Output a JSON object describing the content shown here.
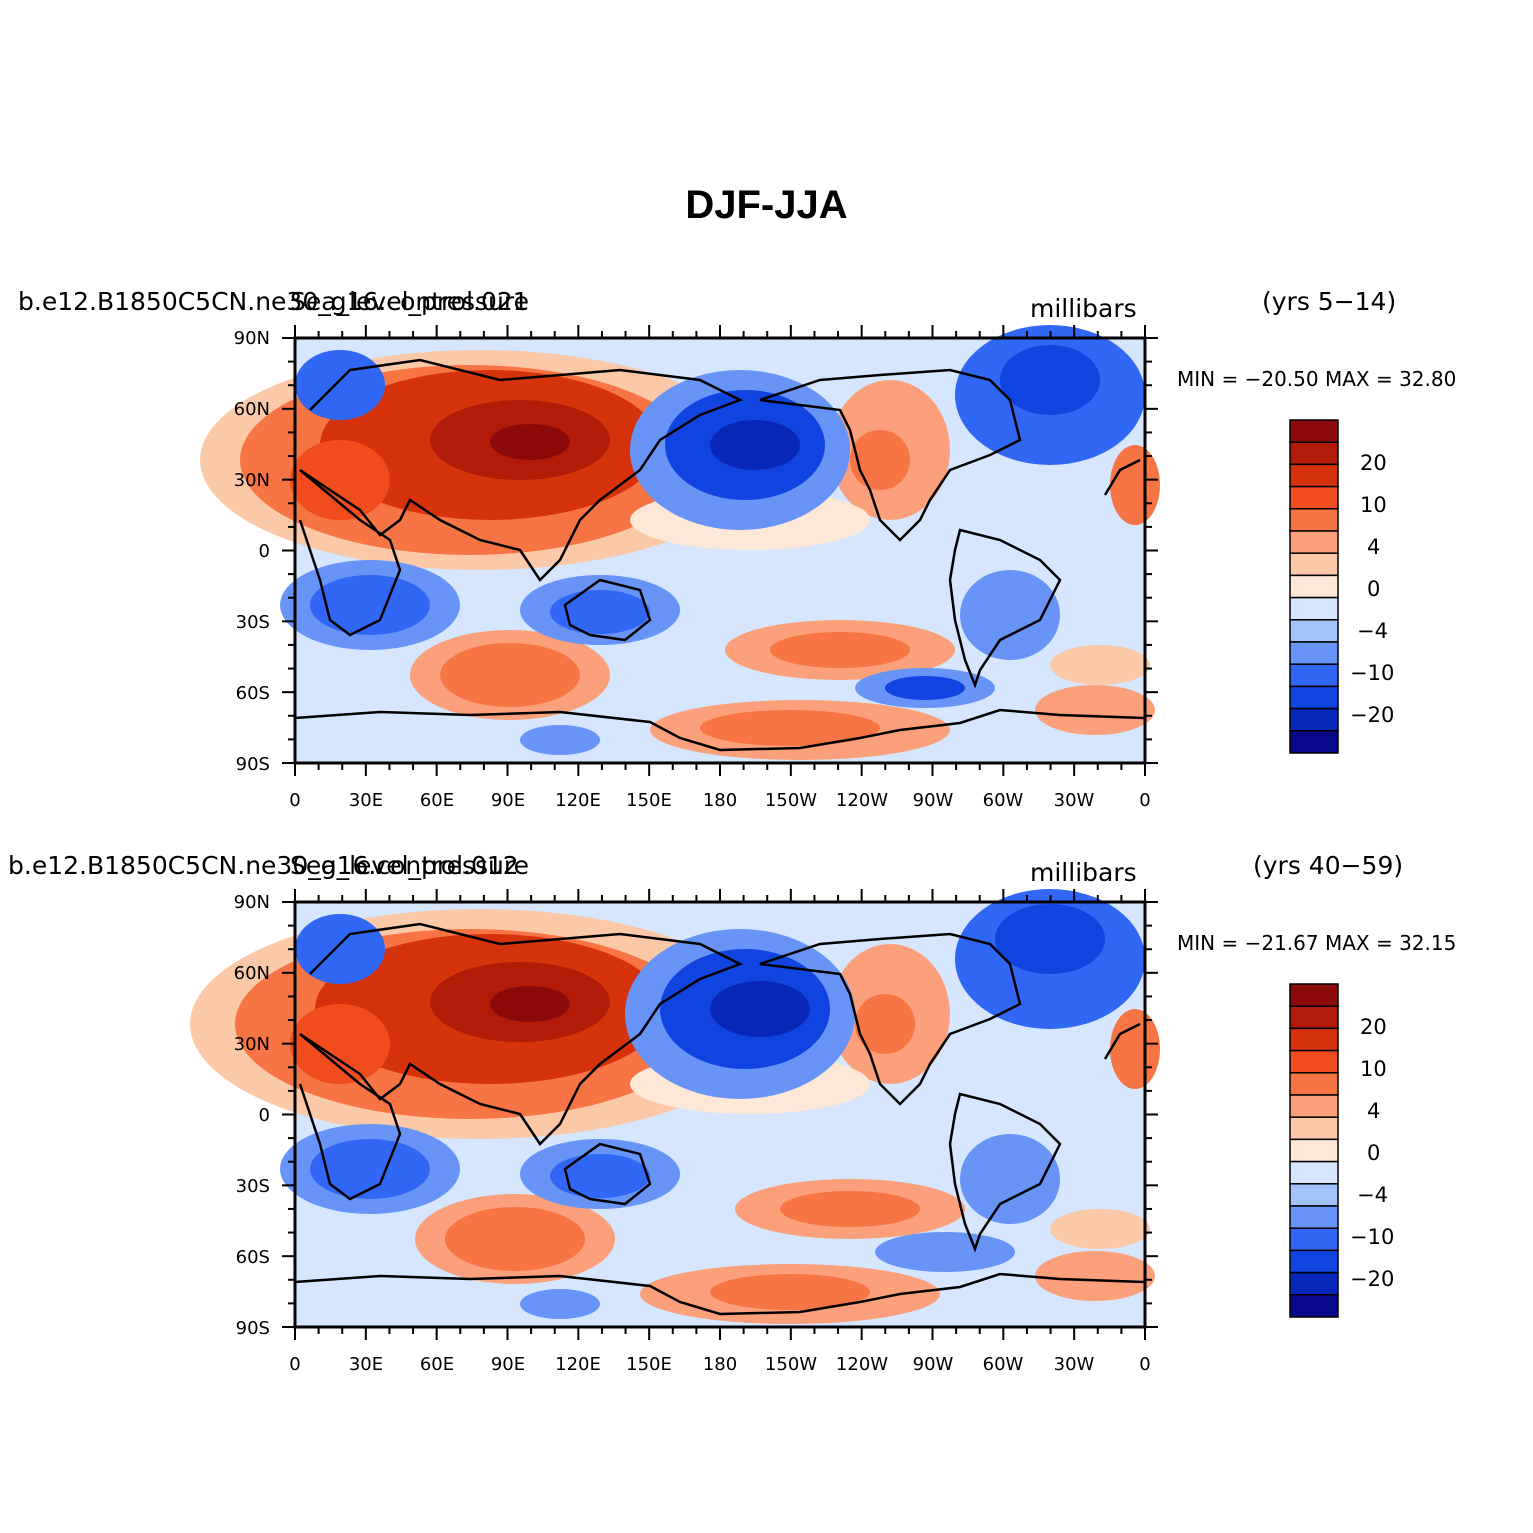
{
  "title": "DJF-JJA",
  "colorbar": {
    "colors": [
      "#08088a",
      "#0728b8",
      "#0f44e0",
      "#3067f4",
      "#6894f8",
      "#a2c2fb",
      "#d5e6fe",
      "#fde7d6",
      "#fcc9a8",
      "#fba07a",
      "#f77445",
      "#f14c1e",
      "#d6320b",
      "#b11b07",
      "#8c0a0a"
    ],
    "labels": [
      "20",
      "10",
      "4",
      "0",
      "−4",
      "−10",
      "−20"
    ]
  },
  "axes": {
    "lat_labels": [
      "90N",
      "60N",
      "30N",
      "0",
      "30S",
      "60S",
      "90S"
    ],
    "lon_labels": [
      "0",
      "30E",
      "60E",
      "90E",
      "120E",
      "150E",
      "180",
      "150W",
      "120W",
      "90W",
      "60W",
      "30W",
      "0"
    ]
  },
  "panels": [
    {
      "left_label_a": "b.e12.B1850C5CN.ne30_g16.control.021",
      "left_label_b": "Sea_level_pressure",
      "units": "millibars",
      "years": "(yrs 5−14)",
      "min_max": "MIN = −20.50  MAX =  32.80"
    },
    {
      "left_label_a": "b.e12.B1850C5CN.ne30_g16.control.012",
      "left_label_b": "Sea_level_pressure",
      "units": "millibars",
      "years": "(yrs 40−59)",
      "min_max": "MIN = −21.67  MAX =  32.15"
    }
  ]
}
